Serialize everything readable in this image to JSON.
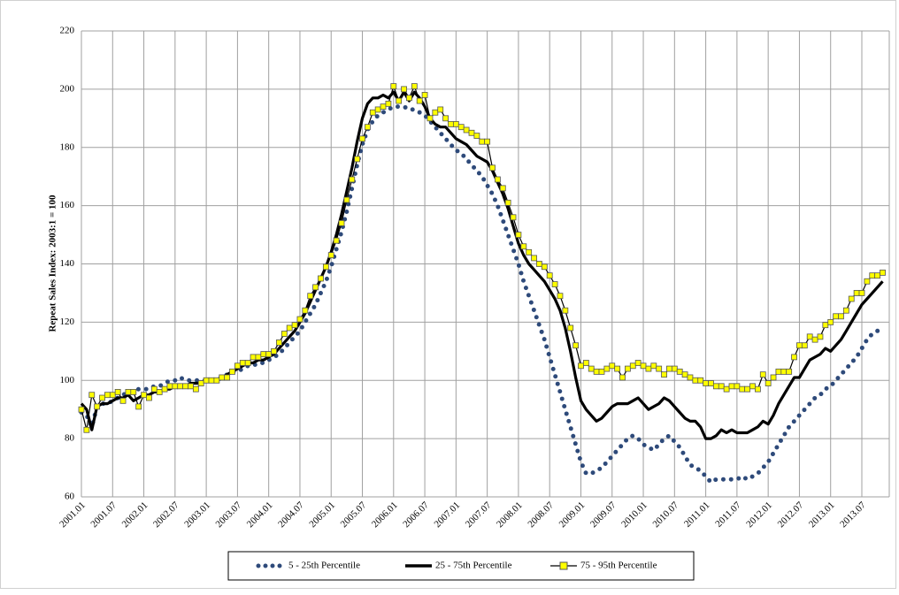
{
  "chart_data": {
    "type": "line",
    "ylabel": "Repeat Sales Index:  2003:1 = 100",
    "ylim": [
      60,
      220
    ],
    "yticks": [
      60,
      80,
      100,
      120,
      140,
      160,
      180,
      200,
      220
    ],
    "grid": true,
    "categories": [
      "2001.01",
      null,
      null,
      null,
      null,
      null,
      "2001.07",
      null,
      null,
      null,
      null,
      null,
      "2002.01",
      null,
      null,
      null,
      null,
      null,
      "2002.07",
      null,
      null,
      null,
      null,
      null,
      "2003.01",
      null,
      null,
      null,
      null,
      null,
      "2003.07",
      null,
      null,
      null,
      null,
      null,
      "2004.01",
      null,
      null,
      null,
      null,
      null,
      "2004.07",
      null,
      null,
      null,
      null,
      null,
      "2005.01",
      null,
      null,
      null,
      null,
      null,
      "2005.07",
      null,
      null,
      null,
      null,
      null,
      "2006.01",
      null,
      null,
      null,
      null,
      null,
      "2006.07",
      null,
      null,
      null,
      null,
      null,
      "2007.01",
      null,
      null,
      null,
      null,
      null,
      "2007.07",
      null,
      null,
      null,
      null,
      null,
      "2008.01",
      null,
      null,
      null,
      null,
      null,
      "2008.07",
      null,
      null,
      null,
      null,
      null,
      "2009.01",
      null,
      null,
      null,
      null,
      null,
      "2009.07",
      null,
      null,
      null,
      null,
      null,
      "2010.01",
      null,
      null,
      null,
      null,
      null,
      "2010.07",
      null,
      null,
      null,
      null,
      null,
      "2011.01",
      null,
      null,
      null,
      null,
      null,
      "2011.07",
      null,
      null,
      null,
      null,
      null,
      "2012.01",
      null,
      null,
      null,
      null,
      null,
      "2012.07",
      null,
      null,
      null,
      null,
      null,
      "2013.01",
      null,
      null,
      null,
      null,
      null,
      "2013.07",
      null,
      null,
      null,
      null
    ],
    "series": [
      {
        "name": "5 - 25th Percentile",
        "color": "#2e4a7a",
        "line_style": "dotted",
        "values": [
          89,
          88,
          84,
          91,
          92,
          92,
          93,
          94,
          95,
          96,
          96,
          97,
          97,
          97,
          98,
          98,
          99,
          100,
          100,
          101,
          100,
          100,
          100,
          100,
          100,
          100,
          100,
          101,
          102,
          103,
          103,
          104,
          105,
          105,
          106,
          106,
          107,
          108,
          109,
          111,
          113,
          115,
          117,
          120,
          123,
          126,
          130,
          134,
          139,
          145,
          151,
          158,
          166,
          174,
          181,
          186,
          189,
          191,
          192,
          193,
          194,
          194,
          194,
          193,
          193,
          192,
          191,
          189,
          187,
          185,
          183,
          181,
          179,
          178,
          176,
          174,
          172,
          170,
          167,
          164,
          160,
          155,
          150,
          145,
          140,
          134,
          129,
          124,
          119,
          114,
          108,
          102,
          96,
          90,
          84,
          78,
          72,
          68,
          68,
          69,
          70,
          72,
          74,
          76,
          78,
          80,
          81,
          80,
          78,
          77,
          76,
          78,
          80,
          81,
          79,
          77,
          74,
          71,
          70,
          69,
          67,
          65,
          66,
          66,
          66,
          66,
          66,
          67,
          66,
          67,
          68,
          70,
          72,
          75,
          78,
          81,
          84,
          86,
          88,
          90,
          92,
          94,
          95,
          97,
          98,
          100,
          102,
          104,
          106,
          108,
          111,
          114,
          116,
          117,
          117
        ]
      },
      {
        "name": "25 - 75th Percentile",
        "color": "#000000",
        "line_style": "solid",
        "values": [
          92,
          90,
          83,
          91,
          92,
          92,
          93,
          94,
          94,
          95,
          93,
          94,
          95,
          95,
          96,
          96,
          97,
          97,
          98,
          98,
          98,
          99,
          99,
          99,
          100,
          100,
          100,
          101,
          102,
          103,
          104,
          105,
          106,
          106,
          107,
          107,
          108,
          109,
          111,
          113,
          115,
          117,
          120,
          123,
          127,
          131,
          135,
          139,
          144,
          150,
          157,
          165,
          173,
          182,
          190,
          195,
          197,
          197,
          198,
          197,
          199,
          196,
          199,
          196,
          199,
          197,
          194,
          190,
          188,
          187,
          187,
          185,
          183,
          182,
          181,
          179,
          177,
          176,
          175,
          172,
          168,
          164,
          159,
          153,
          147,
          143,
          140,
          138,
          136,
          134,
          131,
          128,
          124,
          118,
          110,
          101,
          93,
          90,
          88,
          86,
          87,
          89,
          91,
          92,
          92,
          92,
          93,
          94,
          92,
          90,
          91,
          92,
          94,
          93,
          91,
          89,
          87,
          86,
          86,
          84,
          80,
          80,
          81,
          83,
          82,
          83,
          82,
          82,
          82,
          83,
          84,
          86,
          85,
          88,
          92,
          95,
          98,
          101,
          101,
          104,
          107,
          108,
          109,
          111,
          110,
          112,
          114,
          117,
          120,
          123,
          126,
          128,
          130,
          132,
          134
        ]
      },
      {
        "name": "75 - 95th Percentile",
        "color": "#ffff00",
        "line_style": "square",
        "values": [
          90,
          83,
          95,
          91,
          94,
          95,
          95,
          96,
          93,
          96,
          96,
          91,
          95,
          94,
          97,
          96,
          97,
          98,
          98,
          98,
          98,
          98,
          97,
          99,
          100,
          100,
          100,
          101,
          101,
          103,
          105,
          106,
          106,
          108,
          108,
          109,
          109,
          110,
          113,
          116,
          118,
          119,
          121,
          124,
          129,
          132,
          135,
          139,
          143,
          148,
          154,
          162,
          169,
          176,
          183,
          187,
          192,
          193,
          194,
          195,
          201,
          196,
          200,
          197,
          201,
          196,
          198,
          190,
          192,
          193,
          190,
          188,
          188,
          187,
          186,
          185,
          184,
          182,
          182,
          173,
          169,
          166,
          161,
          156,
          150,
          146,
          144,
          142,
          140,
          139,
          136,
          133,
          129,
          124,
          118,
          112,
          105,
          106,
          104,
          103,
          103,
          104,
          105,
          104,
          101,
          104,
          105,
          106,
          105,
          104,
          105,
          104,
          102,
          104,
          104,
          103,
          102,
          101,
          100,
          100,
          99,
          99,
          98,
          98,
          97,
          98,
          98,
          97,
          97,
          98,
          97,
          102,
          99,
          101,
          103,
          103,
          103,
          108,
          112,
          112,
          115,
          114,
          115,
          119,
          120,
          122,
          122,
          124,
          128,
          130,
          130,
          134,
          136,
          136,
          137
        ]
      }
    ]
  }
}
